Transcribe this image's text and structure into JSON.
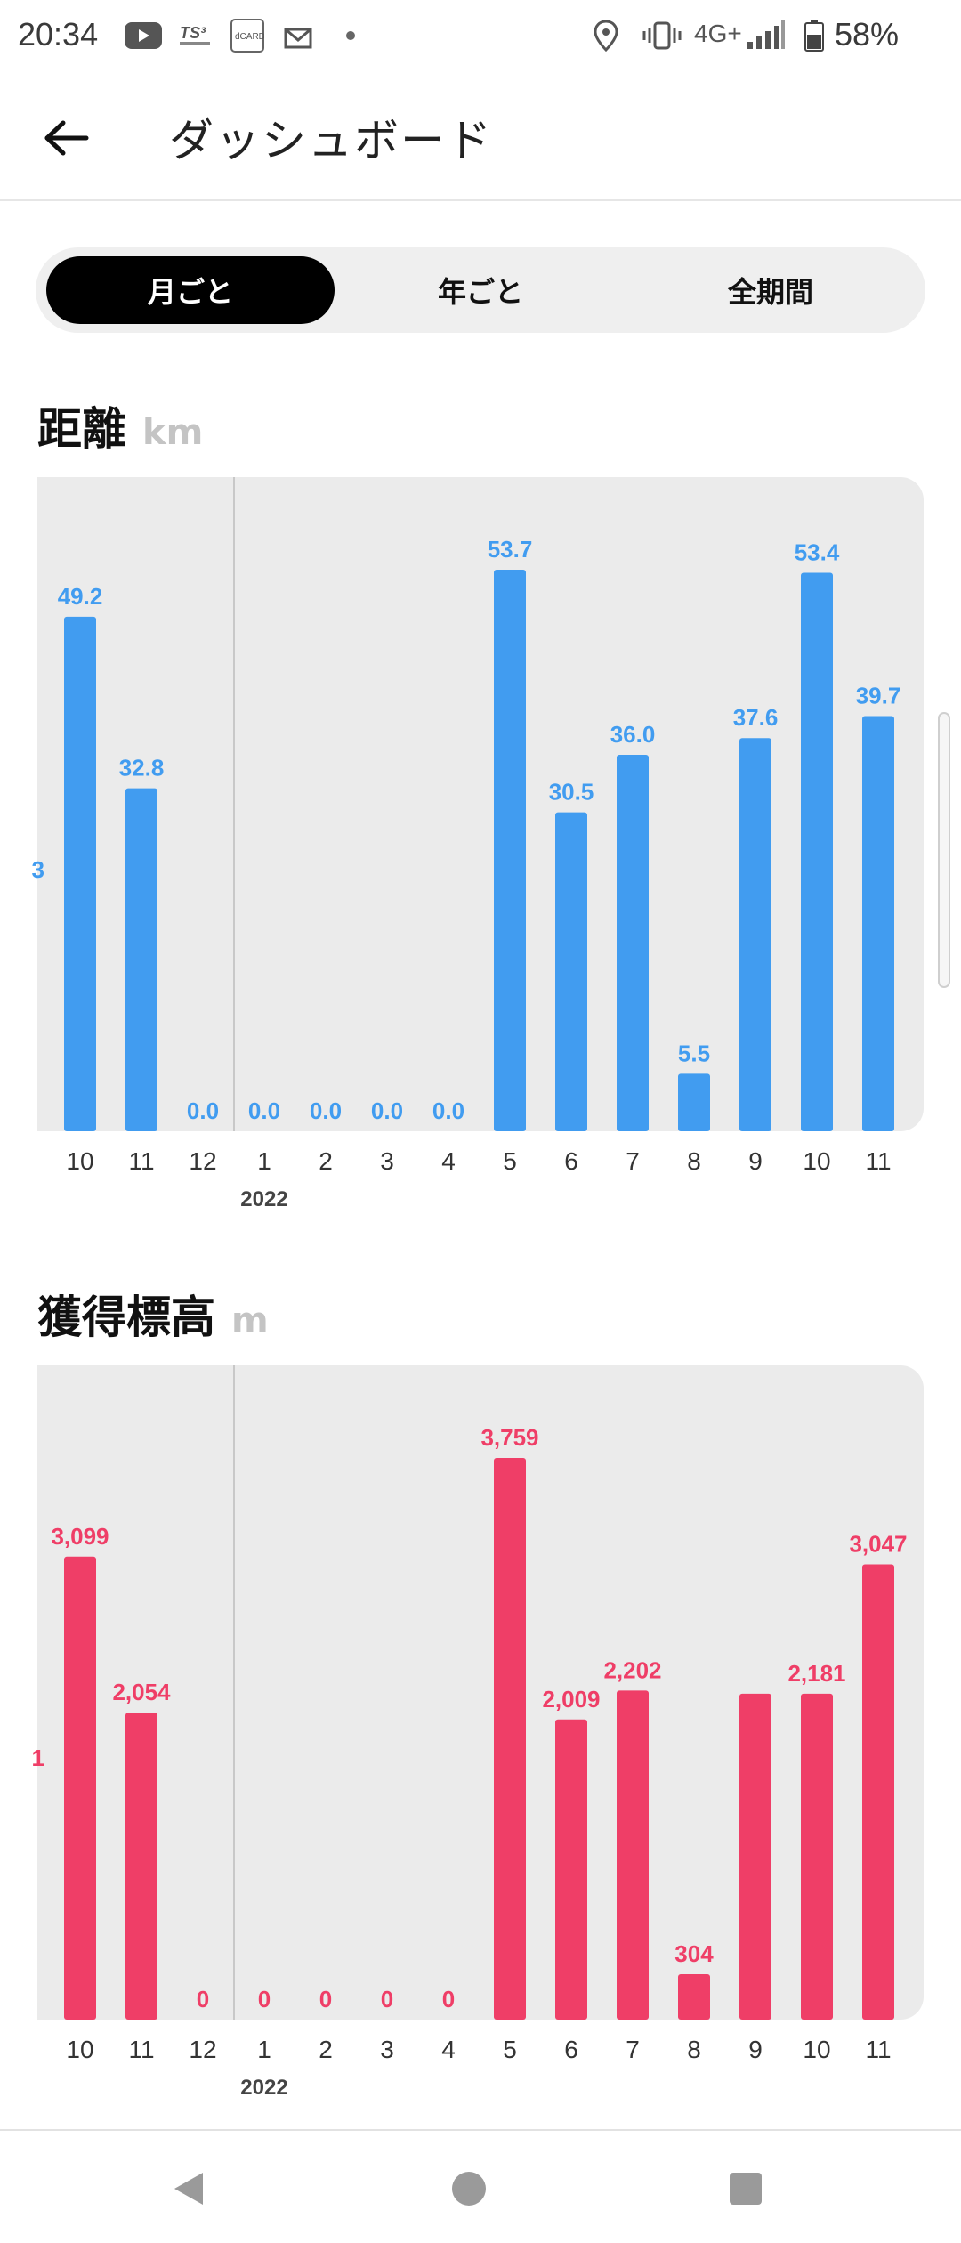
{
  "status_bar": {
    "time": "20:34",
    "network": "4G+",
    "battery": "58%",
    "notification_icons": [
      "youtube-icon",
      "ts3-icon",
      "dcard-icon",
      "mail-icon",
      "dot-icon"
    ],
    "system_icons": [
      "location-icon",
      "vibrate-icon",
      "signal-icon",
      "battery-icon"
    ]
  },
  "app_bar": {
    "title": "ダッシュボード",
    "back_icon": "arrow-left-icon"
  },
  "period_tabs": [
    {
      "label": "月ごと",
      "selected": true
    },
    {
      "label": "年ごと",
      "selected": false
    },
    {
      "label": "全期間",
      "selected": false
    }
  ],
  "distance": {
    "title": "距離",
    "unit": "km"
  },
  "elevation": {
    "title": "獲得標高",
    "unit": "m"
  },
  "chart_data": [
    {
      "type": "bar",
      "title": "距離",
      "ylabel": "km",
      "color": "#419cf0",
      "year_marker": "2022",
      "categories": [
        "10",
        "11",
        "12",
        "1",
        "2",
        "3",
        "4",
        "5",
        "6",
        "7",
        "8",
        "9",
        "10",
        "11"
      ],
      "values": [
        49.2,
        32.8,
        0.0,
        0.0,
        0.0,
        0.0,
        0.0,
        53.7,
        30.5,
        36.0,
        5.5,
        37.6,
        53.4,
        39.7
      ],
      "labels": [
        "49.2",
        "32.8",
        "0.0",
        "0.0",
        "0.0",
        "0.0",
        "0.0",
        "53.7",
        "30.5",
        "36.0",
        "5.5",
        "37.6",
        "53.4",
        "39.7"
      ],
      "partial_left_label": "3",
      "ylim": [
        0,
        60
      ]
    },
    {
      "type": "bar",
      "title": "獲得標高",
      "ylabel": "m",
      "color": "#ef3e67",
      "year_marker": "2022",
      "categories": [
        "10",
        "11",
        "12",
        "1",
        "2",
        "3",
        "4",
        "5",
        "6",
        "7",
        "8",
        "9",
        "10",
        "11"
      ],
      "values": [
        3099,
        2054,
        0,
        0,
        0,
        0,
        0,
        3759,
        2009,
        2202,
        304,
        2181,
        2181,
        3047
      ],
      "labels": [
        "3,099",
        "2,054",
        "0",
        "0",
        "0",
        "0",
        "0",
        "3,759",
        "2,009",
        "2,202",
        "304",
        "",
        "2,181",
        "3,047"
      ],
      "partial_left_label": "1",
      "ylim": [
        0,
        4200
      ]
    }
  ],
  "nav_bar": {
    "icons": [
      "nav-back-icon",
      "nav-home-icon",
      "nav-recents-icon"
    ]
  }
}
